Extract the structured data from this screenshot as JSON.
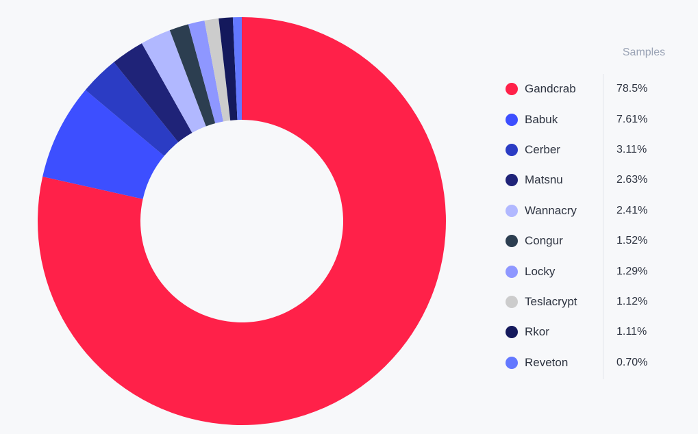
{
  "legend": {
    "header": "Samples"
  },
  "chart_data": {
    "type": "pie",
    "hole": true,
    "series_label": "Samples",
    "categories": [
      "Gandcrab",
      "Babuk",
      "Cerber",
      "Matsnu",
      "Wannacry",
      "Congur",
      "Locky",
      "Teslacrypt",
      "Rkor",
      "Reveton"
    ],
    "values": [
      78.5,
      7.61,
      3.11,
      2.63,
      2.41,
      1.52,
      1.29,
      1.12,
      1.11,
      0.7
    ],
    "value_labels": [
      "78.5%",
      "7.61%",
      "3.11%",
      "2.63%",
      "2.41%",
      "1.52%",
      "1.29%",
      "1.12%",
      "1.11%",
      "0.70%"
    ],
    "colors": [
      "#ff2149",
      "#3d4fff",
      "#2b3cc4",
      "#1f2378",
      "#b1b8ff",
      "#2c3e50",
      "#8e97ff",
      "#cccccc",
      "#14195c",
      "#6378ff"
    ],
    "legend_position": "right"
  }
}
